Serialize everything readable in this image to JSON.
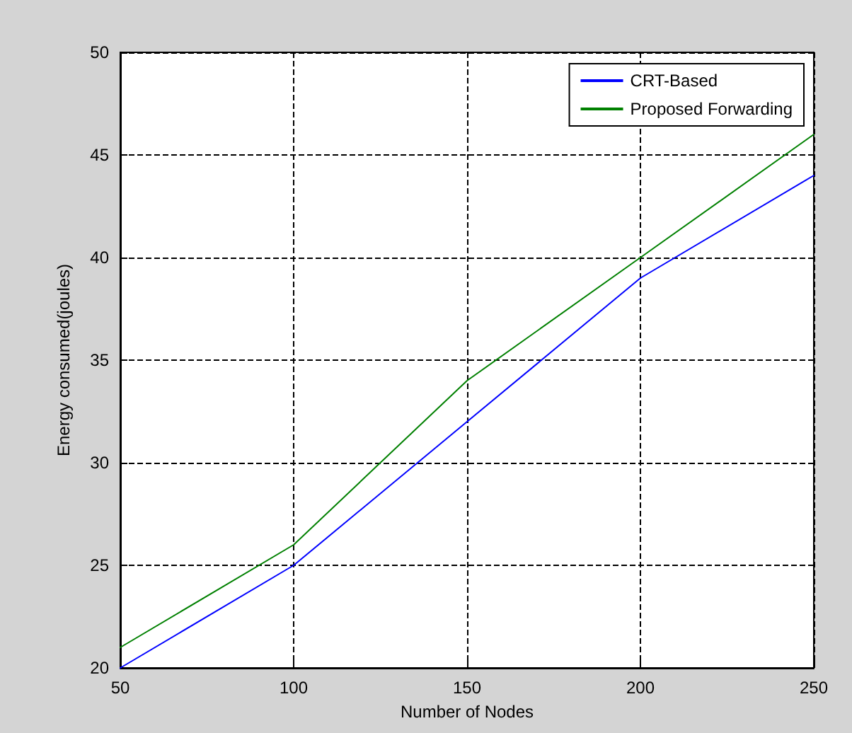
{
  "chart_data": {
    "type": "line",
    "xlabel": "Number of Nodes",
    "ylabel": "Energy consumed(joules)",
    "x": [
      50,
      100,
      150,
      200,
      250
    ],
    "series": [
      {
        "name": "CRT-Based",
        "color": "#0000ff",
        "values": [
          20,
          25,
          32,
          39,
          44
        ]
      },
      {
        "name": "Proposed Forwarding",
        "color": "#008000",
        "values": [
          21,
          26,
          34,
          40,
          46
        ]
      }
    ],
    "xlim": [
      50,
      250
    ],
    "xticks": [
      50,
      100,
      150,
      200,
      250
    ],
    "ylim": [
      20,
      50
    ],
    "yticks": [
      20,
      25,
      30,
      35,
      40,
      45,
      50
    ],
    "grid": true,
    "legend": "top right",
    "marker": "none",
    "line_style": "solid"
  }
}
